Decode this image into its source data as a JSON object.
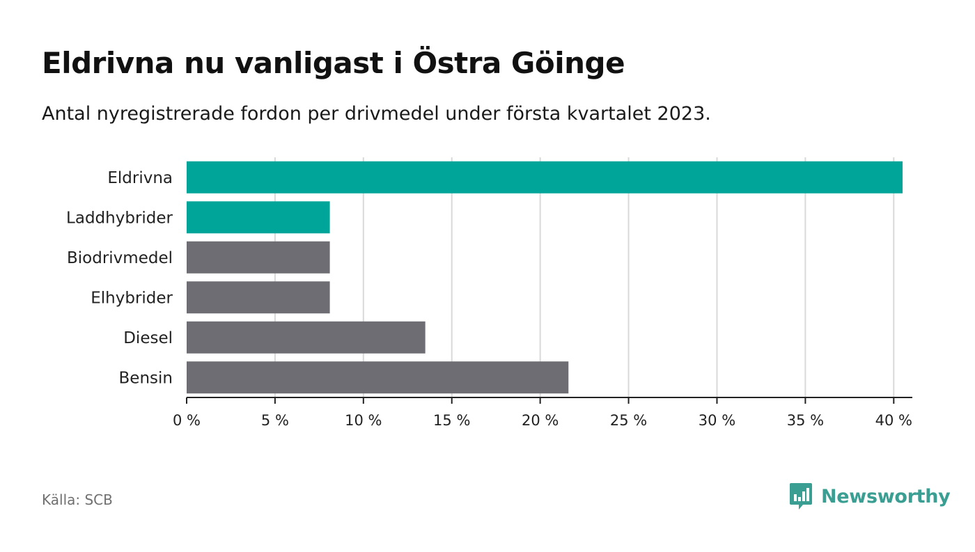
{
  "title": "Eldrivna nu vanligast i Östra Göinge",
  "subtitle": "Antal nyregistrerade fordon per drivmedel under första kvartalet 2023.",
  "source": "Källa: SCB",
  "brand": {
    "name": "Newsworthy",
    "color": "#3a9e92",
    "icon": "bar-chart-speech-bubble-icon"
  },
  "colors": {
    "highlight": "#00a599",
    "default": "#6e6d74",
    "grid": "#d9d9d9",
    "axis": "#222222"
  },
  "chart_data": {
    "type": "bar",
    "orientation": "horizontal",
    "categories": [
      "Eldrivna",
      "Laddhybrider",
      "Biodrivmedel",
      "Elhybrider",
      "Diesel",
      "Bensin"
    ],
    "values": [
      40.5,
      8.1,
      8.1,
      8.1,
      13.5,
      21.6
    ],
    "highlighted": [
      true,
      true,
      false,
      false,
      false,
      false
    ],
    "xlim": [
      0,
      40.5
    ],
    "xticks": [
      0,
      5,
      10,
      15,
      20,
      25,
      30,
      35,
      40
    ],
    "xtick_labels": [
      "0 %",
      "5 %",
      "10 %",
      "15 %",
      "20 %",
      "25 %",
      "30 %",
      "35 %",
      "40 %"
    ],
    "unit": "%",
    "grid": true,
    "legend": false
  }
}
